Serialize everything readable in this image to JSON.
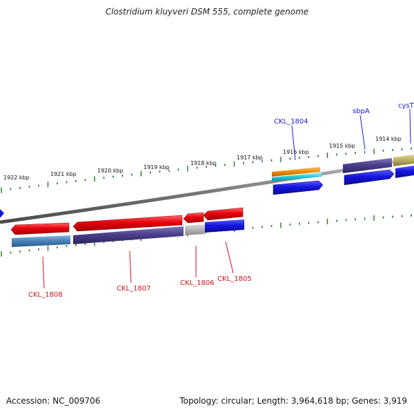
{
  "title": "Clostridium kluyveri DSM 555, complete genome",
  "footer": {
    "accession": "Accession: NC_009706",
    "summary": "Topology: circular; Length: 3,964,618 bp; Genes: 3,919"
  },
  "scale_labels": [
    "1922 kbp",
    "1921 kbp",
    "1920 kbp",
    "1919 kbp",
    "1918 kbp",
    "1917 kbp",
    "1916 kbp",
    "1915 kbp",
    "1914 kbp"
  ],
  "genes": [
    {
      "label": "CKL_1808",
      "strand": "minus",
      "color": "#e8000b"
    },
    {
      "label": "CKL_1807",
      "strand": "minus",
      "color": "#e8000b"
    },
    {
      "label": "CKL_1806",
      "strand": "minus",
      "color": "#e8000b"
    },
    {
      "label": "CKL_1805",
      "strand": "minus",
      "color": "#e8000b"
    },
    {
      "label": "CKL_1804",
      "strand": "plus",
      "color": "#1515c8"
    },
    {
      "label": "sbpA",
      "strand": "plus",
      "color": "#1515c8"
    },
    {
      "label": "cysT",
      "strand": "plus",
      "color": "#1515c8"
    }
  ],
  "colors": {
    "plus_label": "#1c1ccc",
    "minus_label": "#d0101a",
    "tick": "#1f7a1f",
    "backbone": "#7a7a7a"
  }
}
